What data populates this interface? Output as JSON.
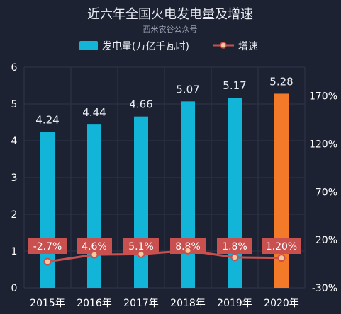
{
  "header": {
    "title": "近六年全国火电发电量及增速",
    "subtitle": "西米农谷公众号"
  },
  "colors": {
    "background": "#1d2233",
    "bar": "#12b4d8",
    "bar_highlight": "#f37a28",
    "line": "#c8504f",
    "label_box": "#c8504f",
    "text": "#e9ecf2",
    "axis_text": "#ffffff",
    "grid": "#2f3547"
  },
  "chart_data": {
    "type": "bar",
    "title": "近六年全国火电发电量及增速",
    "categories": [
      "2015年",
      "2016年",
      "2017年",
      "2018年",
      "2019年",
      "2020年"
    ],
    "series": [
      {
        "name": "发电量(万亿千瓦时)",
        "type": "bar",
        "axis": "left",
        "values": [
          4.24,
          4.44,
          4.66,
          5.07,
          5.17,
          5.28
        ],
        "labels": [
          "4.24",
          "4.44",
          "4.66",
          "5.07",
          "5.17",
          "5.28"
        ],
        "highlight_index": 5
      },
      {
        "name": "增速",
        "type": "line",
        "axis": "right",
        "values": [
          -2.7,
          4.6,
          5.1,
          8.8,
          1.8,
          1.2
        ],
        "labels": [
          "-2.7%",
          "4.6%",
          "5.1%",
          "8.8%",
          "1.8%",
          "1.20%"
        ]
      }
    ],
    "y_left": {
      "min": 0,
      "max": 6,
      "ticks": [
        "0",
        "1",
        "2",
        "3",
        "4",
        "5",
        "6"
      ]
    },
    "y_right": {
      "min": -30,
      "max": 200,
      "ticks": [
        "-30%",
        "20%",
        "70%",
        "120%",
        "170%"
      ],
      "tick_values": [
        -30,
        20,
        70,
        120,
        170
      ]
    },
    "legend_position": "top-center",
    "grid": true
  }
}
